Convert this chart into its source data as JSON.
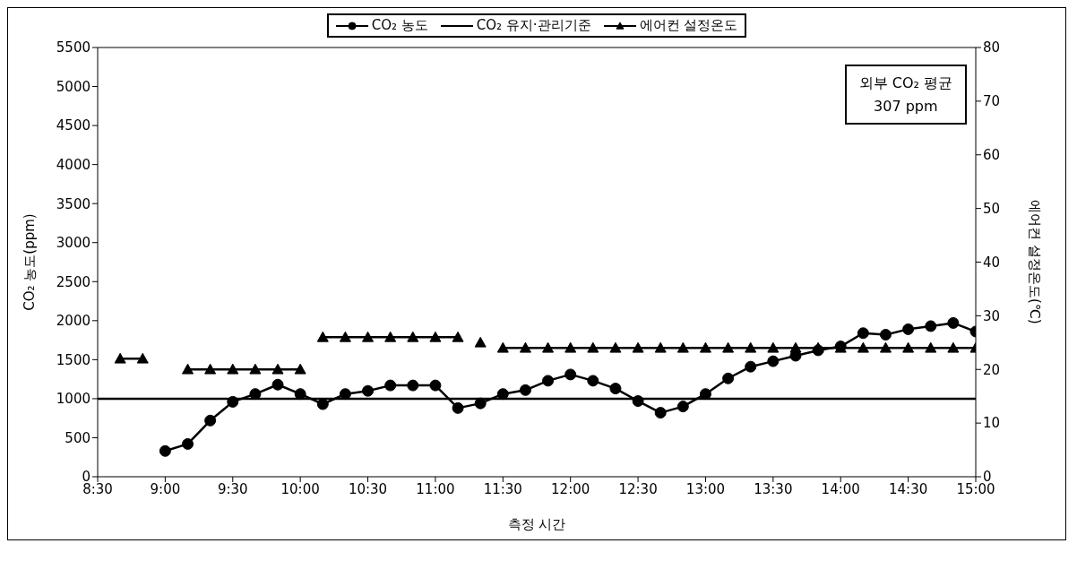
{
  "chart_data": {
    "type": "line",
    "xlabel": "측정 시간",
    "ylabel": "CO₂ 농도(ppm)",
    "y2label": "에어컨 설정온도(℃)",
    "xlim": [
      8.5,
      15
    ],
    "xticks": [
      {
        "value": 8.5,
        "label": "8:30"
      },
      {
        "value": 9,
        "label": "9:00"
      },
      {
        "value": 9.5,
        "label": "9:30"
      },
      {
        "value": 10,
        "label": "10:00"
      },
      {
        "value": 10.5,
        "label": "10:30"
      },
      {
        "value": 11,
        "label": "11:00"
      },
      {
        "value": 11.5,
        "label": "11:30"
      },
      {
        "value": 12,
        "label": "12:00"
      },
      {
        "value": 12.5,
        "label": "12:30"
      },
      {
        "value": 13,
        "label": "13:00"
      },
      {
        "value": 13.5,
        "label": "13:30"
      },
      {
        "value": 14,
        "label": "14:00"
      },
      {
        "value": 14.5,
        "label": "14:30"
      },
      {
        "value": 15,
        "label": "15:00"
      }
    ],
    "ylim": [
      0,
      5500
    ],
    "yticks": [
      0,
      500,
      1000,
      1500,
      2000,
      2500,
      3000,
      3500,
      4000,
      4500,
      5000,
      5500
    ],
    "y2lim": [
      0,
      80
    ],
    "y2ticks": [
      0,
      10,
      20,
      30,
      40,
      50,
      60,
      70,
      80
    ],
    "grid": false,
    "legend": "top",
    "line_style": "solid",
    "annotations": [
      "외부 CO₂ 평균\n307 ppm"
    ],
    "series": [
      {
        "name": "CO₂ 농도",
        "color": "#000000",
        "marker": "circle",
        "x": [
          9.0,
          9.1667,
          9.3333,
          9.5,
          9.6667,
          9.8333,
          10.0,
          10.1667,
          10.3333,
          10.5,
          10.6667,
          10.8333,
          11.0,
          11.1667,
          11.3333,
          11.5,
          11.6667,
          11.8333,
          12.0,
          12.1667,
          12.3333,
          12.5,
          12.6667,
          12.8333,
          13.0,
          13.1667,
          13.3333,
          13.5,
          13.6667,
          13.8333,
          14.0,
          14.1667,
          14.3333,
          14.5,
          14.6667,
          14.8333,
          15.0
        ],
        "values": [
          330,
          420,
          720,
          960,
          1060,
          1180,
          1060,
          930,
          1060,
          1100,
          1170,
          1170,
          1170,
          880,
          940,
          1060,
          1110,
          1230,
          1310,
          1230,
          1130,
          970,
          820,
          900,
          1060,
          1260,
          1410,
          1480,
          1550,
          1620,
          1670,
          1840,
          1820,
          1890,
          1930,
          1970,
          1860
        ]
      },
      {
        "name": "CO₂ 유지·관리기준",
        "color": "#000000",
        "marker": "none",
        "x": [
          8.5,
          15
        ],
        "values": [
          1000,
          1000
        ]
      },
      {
        "name": "에어컨 설정온도",
        "color": "#000000",
        "marker": "triangle",
        "axis": "y2",
        "x": [
          8.6667,
          8.8333,
          9.0,
          9.1667,
          9.3333,
          9.5,
          9.6667,
          9.8333,
          10.0,
          10.0833,
          10.1667,
          10.3333,
          10.5,
          10.6667,
          10.8333,
          11.0,
          11.1667,
          11.25,
          11.3333,
          11.4167,
          11.5,
          11.6667,
          11.8333,
          12.0,
          12.1667,
          12.3333,
          12.5,
          12.6667,
          12.8333,
          13.0,
          13.1667,
          13.3333,
          13.5,
          13.6667,
          13.8333,
          14.0,
          14.1667,
          14.3333,
          14.5,
          14.6667,
          14.8333,
          15.0
        ],
        "values": [
          22,
          22,
          null,
          20,
          20,
          20,
          20,
          20,
          20,
          null,
          26,
          26,
          26,
          26,
          26,
          26,
          26,
          null,
          25,
          null,
          24,
          24,
          24,
          24,
          24,
          24,
          24,
          24,
          24,
          24,
          24,
          24,
          24,
          24,
          24,
          24,
          24,
          24,
          24,
          24,
          24,
          24
        ]
      }
    ]
  }
}
